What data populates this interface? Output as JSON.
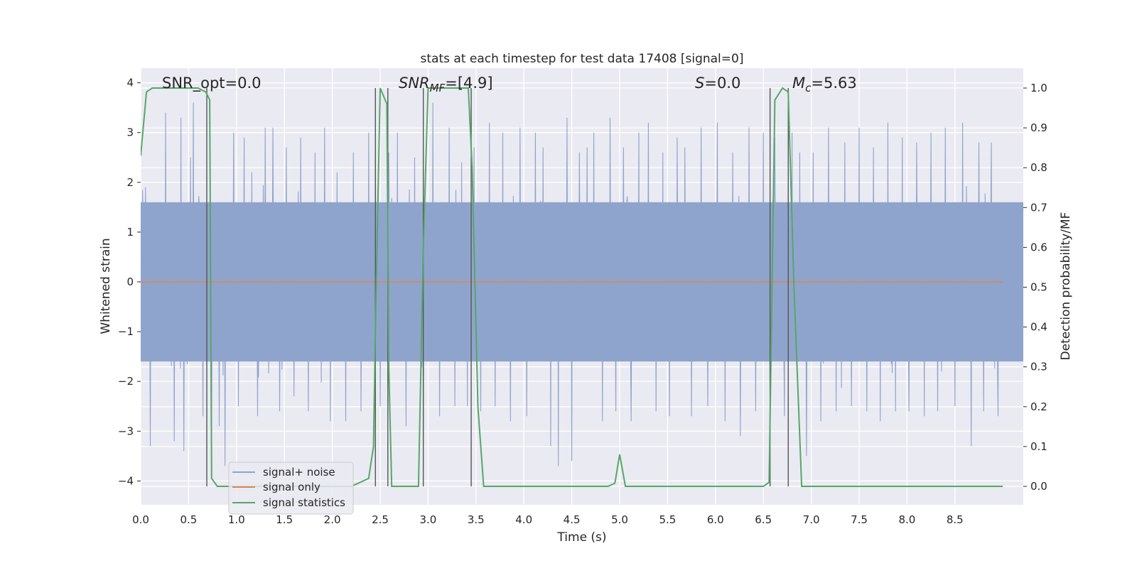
{
  "chart_data": {
    "type": "line",
    "title": "stats at each timestep for test data 17408 [signal=0]",
    "xlabel": "Time (s)",
    "ylabel": "Whitened strain",
    "y2label": "Detection probability/MF",
    "xlim": [
      0,
      9.0
    ],
    "ylim": [
      -4.4,
      4.2
    ],
    "y2lim": [
      -0.05,
      1.035
    ],
    "xticks": [
      "0.0",
      "0.5",
      "1.0",
      "1.5",
      "2.0",
      "2.5",
      "3.0",
      "3.5",
      "4.0",
      "4.5",
      "5.0",
      "5.5",
      "6.0",
      "6.5",
      "7.0",
      "7.5",
      "8.0",
      "8.5"
    ],
    "yticks": [
      "−4",
      "−3",
      "−2",
      "−1",
      "0",
      "1",
      "2",
      "3",
      "4"
    ],
    "y2ticks": [
      "0.0",
      "0.1",
      "0.2",
      "0.3",
      "0.4",
      "0.5",
      "0.6",
      "0.7",
      "0.8",
      "0.9",
      "1.0"
    ],
    "grid": true,
    "legend_position": "lower-left",
    "annotations": {
      "snr_opt": "SNR_opt=0.0",
      "snr_mf_base": "SNR",
      "snr_mf_sub": "MF",
      "snr_mf_value": "=[4.9]",
      "s_symbol": "S",
      "s_value": "=0.0",
      "mc_base": "M",
      "mc_sub": "c",
      "mc_value": "=5.63"
    },
    "series": [
      {
        "name": "signal+ noise",
        "color": "#8fa4cc",
        "axis": "left",
        "noise_band": [
          -1.6,
          1.6
        ],
        "peaks": [
          [
            0.05,
            1.9
          ],
          [
            0.1,
            -3.3
          ],
          [
            0.26,
            3.4
          ],
          [
            0.35,
            -3.2
          ],
          [
            0.42,
            3.3
          ],
          [
            0.45,
            -3.4
          ],
          [
            0.52,
            2.5
          ],
          [
            0.55,
            3.6
          ],
          [
            0.65,
            -2.7
          ],
          [
            0.74,
            -3.0
          ],
          [
            0.82,
            -2.9
          ],
          [
            0.88,
            -3.7
          ],
          [
            0.97,
            3.0
          ],
          [
            1.02,
            -2.5
          ],
          [
            1.08,
            2.9
          ],
          [
            1.16,
            2.2
          ],
          [
            1.22,
            -2.7
          ],
          [
            1.3,
            3.1
          ],
          [
            1.38,
            3.1
          ],
          [
            1.45,
            -2.6
          ],
          [
            1.52,
            2.7
          ],
          [
            1.6,
            -2.3
          ],
          [
            1.67,
            2.9
          ],
          [
            1.75,
            -2.6
          ],
          [
            1.82,
            2.6
          ],
          [
            1.92,
            3.1
          ],
          [
            1.98,
            -2.8
          ],
          [
            2.05,
            2.2
          ],
          [
            2.14,
            -2.8
          ],
          [
            2.22,
            2.6
          ],
          [
            2.3,
            -2.6
          ],
          [
            2.38,
            3.0
          ],
          [
            2.45,
            2.6
          ],
          [
            2.5,
            -2.5
          ],
          [
            2.59,
            2.6
          ],
          [
            2.68,
            3.0
          ],
          [
            2.77,
            -2.9
          ],
          [
            2.86,
            2.5
          ],
          [
            2.95,
            -3.1
          ],
          [
            3.05,
            3.6
          ],
          [
            3.12,
            -2.7
          ],
          [
            3.22,
            3.1
          ],
          [
            3.28,
            -2.5
          ],
          [
            3.35,
            2.4
          ],
          [
            3.41,
            -2.5
          ],
          [
            3.48,
            2.7
          ],
          [
            3.55,
            -2.6
          ],
          [
            3.64,
            3.2
          ],
          [
            3.7,
            -2.5
          ],
          [
            3.78,
            3.0
          ],
          [
            3.86,
            -2.8
          ],
          [
            3.96,
            3.1
          ],
          [
            4.03,
            -2.7
          ],
          [
            4.12,
            3.0
          ],
          [
            4.2,
            2.7
          ],
          [
            4.28,
            -3.3
          ],
          [
            4.36,
            -3.7
          ],
          [
            4.45,
            3.3
          ],
          [
            4.5,
            -3.6
          ],
          [
            4.58,
            2.6
          ],
          [
            4.66,
            2.7
          ],
          [
            4.73,
            3.0
          ],
          [
            4.82,
            -2.8
          ],
          [
            4.9,
            3.3
          ],
          [
            4.96,
            -2.6
          ],
          [
            5.04,
            2.7
          ],
          [
            5.12,
            -2.8
          ],
          [
            5.2,
            3.0
          ],
          [
            5.3,
            3.2
          ],
          [
            5.38,
            -2.6
          ],
          [
            5.45,
            2.6
          ],
          [
            5.52,
            -2.7
          ],
          [
            5.6,
            2.9
          ],
          [
            5.68,
            2.7
          ],
          [
            5.75,
            -2.7
          ],
          [
            5.85,
            3.1
          ],
          [
            5.92,
            -2.5
          ],
          [
            6.02,
            3.2
          ],
          [
            6.1,
            -2.8
          ],
          [
            6.18,
            2.6
          ],
          [
            6.26,
            -3.1
          ],
          [
            6.35,
            3.1
          ],
          [
            6.42,
            -2.6
          ],
          [
            6.5,
            3.0
          ],
          [
            6.57,
            -2.5
          ],
          [
            6.62,
            2.9
          ],
          [
            6.72,
            -2.7
          ],
          [
            6.8,
            3.0
          ],
          [
            6.88,
            2.6
          ],
          [
            6.95,
            -3.5
          ],
          [
            7.02,
            2.6
          ],
          [
            7.1,
            -2.8
          ],
          [
            7.18,
            3.1
          ],
          [
            7.26,
            -2.6
          ],
          [
            7.35,
            2.8
          ],
          [
            7.42,
            -2.5
          ],
          [
            7.5,
            3.1
          ],
          [
            7.58,
            -2.6
          ],
          [
            7.65,
            2.7
          ],
          [
            7.72,
            -2.8
          ],
          [
            7.8,
            3.2
          ],
          [
            7.88,
            -2.6
          ],
          [
            7.95,
            2.9
          ],
          [
            8.02,
            -2.6
          ],
          [
            8.1,
            2.8
          ],
          [
            8.18,
            -2.7
          ],
          [
            8.25,
            3.0
          ],
          [
            8.32,
            -2.6
          ],
          [
            8.4,
            3.1
          ],
          [
            8.5,
            -2.5
          ],
          [
            8.58,
            3.2
          ],
          [
            8.67,
            -3.3
          ],
          [
            8.75,
            2.8
          ],
          [
            8.8,
            -2.6
          ],
          [
            8.88,
            2.8
          ],
          [
            8.95,
            -2.7
          ]
        ]
      },
      {
        "name": "signal only",
        "color": "#dd8452",
        "axis": "left",
        "x": [
          0.0,
          9.0
        ],
        "y": [
          0.0,
          0.0
        ]
      },
      {
        "name": "signal statistics",
        "color": "#55a868",
        "axis": "right",
        "x": [
          0.0,
          0.06,
          0.12,
          0.5,
          0.6,
          0.68,
          0.72,
          0.74,
          0.8,
          2.2,
          2.38,
          2.43,
          2.45,
          2.5,
          2.57,
          2.59,
          2.62,
          2.9,
          2.95,
          3.0,
          3.42,
          3.46,
          3.52,
          3.58,
          4.0,
          4.88,
          4.95,
          5.0,
          5.06,
          5.5,
          6.5,
          6.56,
          6.62,
          6.7,
          6.76,
          6.82,
          6.9,
          7.5,
          9.0
        ],
        "y": [
          0.83,
          0.99,
          1.0,
          1.0,
          1.0,
          0.99,
          0.97,
          0.02,
          0.0,
          0.0,
          0.02,
          0.1,
          0.4,
          1.0,
          0.96,
          0.3,
          0.0,
          0.0,
          0.6,
          1.0,
          1.0,
          0.8,
          0.2,
          0.0,
          0.0,
          0.0,
          0.008,
          0.08,
          0.0,
          0.0,
          0.0,
          0.01,
          0.97,
          1.0,
          0.99,
          0.5,
          0.0,
          0.0,
          0.0
        ]
      }
    ],
    "vlines": [
      0.69,
      2.45,
      2.58,
      2.95,
      3.45,
      6.57,
      6.76
    ]
  }
}
